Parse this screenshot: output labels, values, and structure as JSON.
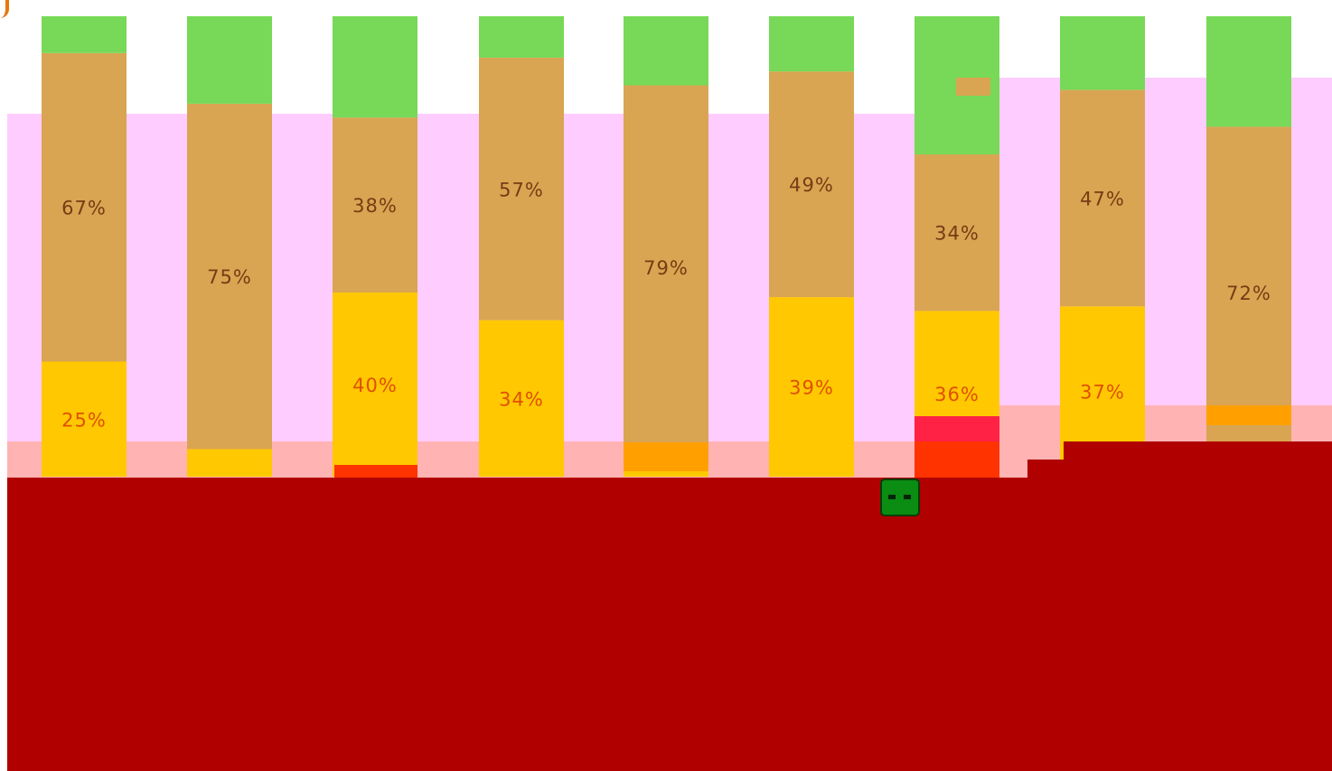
{
  "chart_data": {
    "type": "bar",
    "stacked": true,
    "ylim": [
      0,
      100
    ],
    "grid": false,
    "legend": "none",
    "categories": [
      "",
      "",
      "",
      "",
      "",
      "",
      "",
      "",
      ""
    ],
    "series": [
      {
        "color": "#ffc800",
        "values": [
          25,
          6,
          40,
          34,
          6,
          39,
          36,
          37,
          4
        ]
      },
      {
        "color": "#d9a552",
        "values": [
          67,
          75,
          38,
          57,
          79,
          49,
          34,
          47,
          72
        ]
      },
      {
        "color": "#77d957",
        "values": [
          8,
          19,
          22,
          9,
          15,
          12,
          30,
          16,
          24
        ]
      }
    ],
    "labels": [
      {
        "series": 0,
        "texts": [
          "25%",
          "",
          "40%",
          "34%",
          "",
          "39%",
          "36%",
          "37%",
          ""
        ]
      },
      {
        "series": 1,
        "texts": [
          "67%",
          "75%",
          "38%",
          "57%",
          "79%",
          "49%",
          "34%",
          "47%",
          "72%"
        ]
      }
    ],
    "colors": {
      "background_band": "#ffccff",
      "lower_band": "#ffb3b3",
      "dark_region": "#b00000",
      "label_top": "#7a3a14",
      "label_bottom": "#e05000",
      "marker": "#0b8c12"
    }
  }
}
